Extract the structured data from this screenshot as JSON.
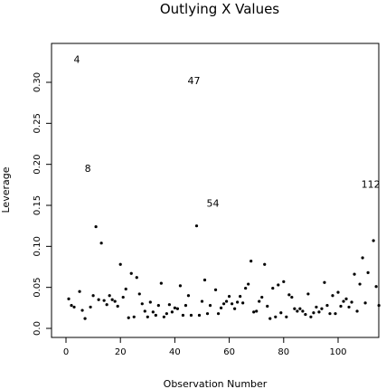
{
  "chart_data": {
    "type": "scatter",
    "title": "Outlying X Values",
    "xlabel": "Observation Number",
    "ylabel": "Leverage",
    "xlim": [
      0,
      114
    ],
    "ylim": [
      0,
      0.33
    ],
    "xticks": [
      0,
      20,
      40,
      60,
      80,
      100
    ],
    "yticks": [
      0.0,
      0.05,
      0.1,
      0.15,
      0.2,
      0.25,
      0.3
    ],
    "ytick_labels": [
      "0.0",
      "0.05",
      "0.10",
      "0.15",
      "0.20",
      "0.25",
      "0.30"
    ],
    "grid": false,
    "labeled_points": [
      {
        "label": "4",
        "x": 4,
        "y": 0.328
      },
      {
        "label": "8",
        "x": 8,
        "y": 0.195
      },
      {
        "label": "47",
        "x": 47,
        "y": 0.302
      },
      {
        "label": "54",
        "x": 54,
        "y": 0.153
      },
      {
        "label": "112",
        "x": 112,
        "y": 0.176
      }
    ],
    "points": [
      [
        1,
        0.036
      ],
      [
        2,
        0.028
      ],
      [
        3,
        0.026
      ],
      [
        5,
        0.045
      ],
      [
        6,
        0.022
      ],
      [
        7,
        0.012
      ],
      [
        9,
        0.026
      ],
      [
        10,
        0.04
      ],
      [
        11,
        0.124
      ],
      [
        12,
        0.035
      ],
      [
        13,
        0.104
      ],
      [
        14,
        0.034
      ],
      [
        15,
        0.029
      ],
      [
        16,
        0.04
      ],
      [
        17,
        0.035
      ],
      [
        18,
        0.033
      ],
      [
        19,
        0.027
      ],
      [
        20,
        0.078
      ],
      [
        21,
        0.038
      ],
      [
        22,
        0.048
      ],
      [
        23,
        0.013
      ],
      [
        24,
        0.067
      ],
      [
        25,
        0.014
      ],
      [
        26,
        0.062
      ],
      [
        27,
        0.042
      ],
      [
        28,
        0.03
      ],
      [
        29,
        0.021
      ],
      [
        30,
        0.014
      ],
      [
        31,
        0.032
      ],
      [
        32,
        0.02
      ],
      [
        33,
        0.016
      ],
      [
        34,
        0.028
      ],
      [
        35,
        0.055
      ],
      [
        36,
        0.014
      ],
      [
        37,
        0.018
      ],
      [
        38,
        0.029
      ],
      [
        39,
        0.02
      ],
      [
        40,
        0.025
      ],
      [
        41,
        0.024
      ],
      [
        42,
        0.052
      ],
      [
        43,
        0.016
      ],
      [
        44,
        0.028
      ],
      [
        45,
        0.04
      ],
      [
        46,
        0.016
      ],
      [
        48,
        0.125
      ],
      [
        49,
        0.016
      ],
      [
        50,
        0.033
      ],
      [
        51,
        0.059
      ],
      [
        52,
        0.018
      ],
      [
        53,
        0.028
      ],
      [
        55,
        0.047
      ],
      [
        56,
        0.018
      ],
      [
        57,
        0.025
      ],
      [
        58,
        0.03
      ],
      [
        59,
        0.033
      ],
      [
        60,
        0.039
      ],
      [
        61,
        0.03
      ],
      [
        62,
        0.024
      ],
      [
        63,
        0.032
      ],
      [
        64,
        0.039
      ],
      [
        65,
        0.031
      ],
      [
        66,
        0.049
      ],
      [
        67,
        0.054
      ],
      [
        68,
        0.082
      ],
      [
        69,
        0.02
      ],
      [
        70,
        0.021
      ],
      [
        71,
        0.033
      ],
      [
        72,
        0.038
      ],
      [
        73,
        0.078
      ],
      [
        74,
        0.027
      ],
      [
        75,
        0.012
      ],
      [
        76,
        0.049
      ],
      [
        77,
        0.014
      ],
      [
        78,
        0.053
      ],
      [
        79,
        0.019
      ],
      [
        80,
        0.057
      ],
      [
        81,
        0.014
      ],
      [
        82,
        0.041
      ],
      [
        83,
        0.038
      ],
      [
        84,
        0.024
      ],
      [
        85,
        0.021
      ],
      [
        86,
        0.024
      ],
      [
        87,
        0.021
      ],
      [
        88,
        0.017
      ],
      [
        89,
        0.042
      ],
      [
        90,
        0.014
      ],
      [
        91,
        0.019
      ],
      [
        92,
        0.026
      ],
      [
        93,
        0.02
      ],
      [
        94,
        0.024
      ],
      [
        95,
        0.056
      ],
      [
        96,
        0.028
      ],
      [
        97,
        0.018
      ],
      [
        98,
        0.04
      ],
      [
        99,
        0.018
      ],
      [
        100,
        0.044
      ],
      [
        101,
        0.027
      ],
      [
        102,
        0.033
      ],
      [
        103,
        0.036
      ],
      [
        104,
        0.026
      ],
      [
        105,
        0.032
      ],
      [
        106,
        0.066
      ],
      [
        107,
        0.021
      ],
      [
        108,
        0.054
      ],
      [
        109,
        0.086
      ],
      [
        110,
        0.031
      ],
      [
        111,
        0.068
      ],
      [
        113,
        0.107
      ],
      [
        114,
        0.051
      ],
      [
        115,
        0.028
      ]
    ]
  }
}
